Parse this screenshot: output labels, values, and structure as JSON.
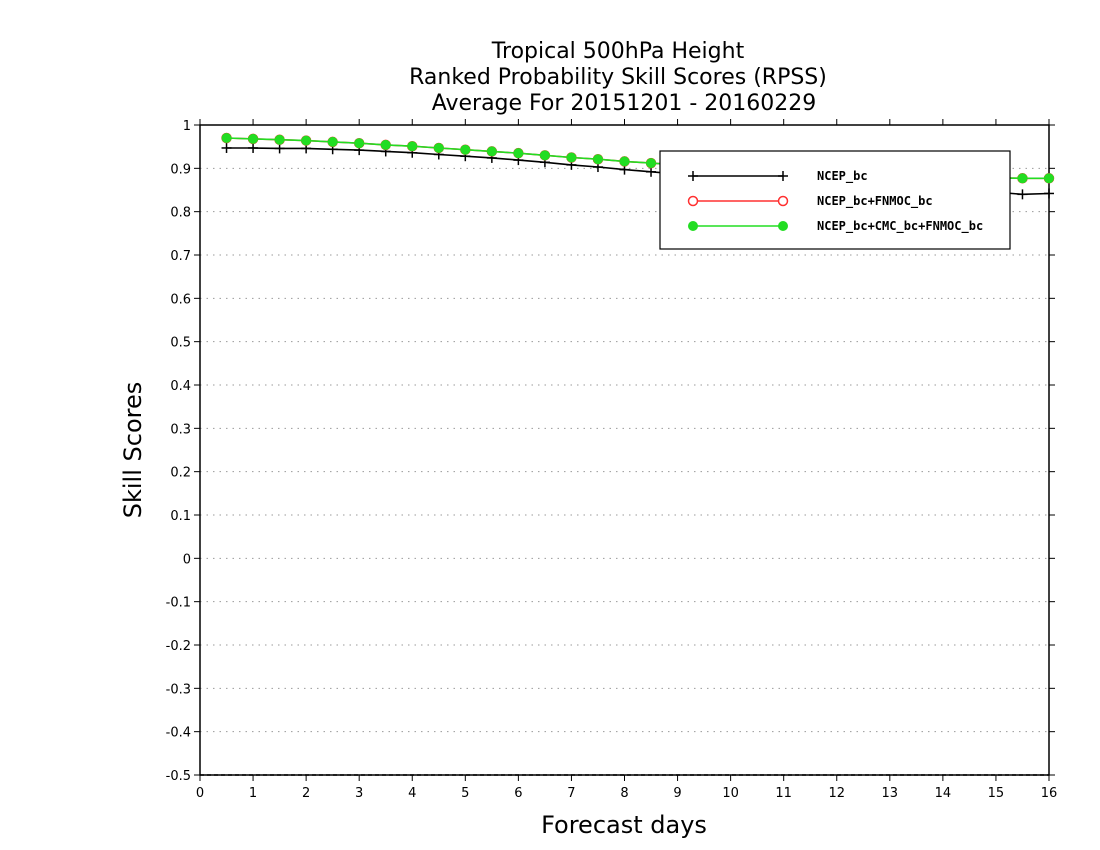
{
  "chart_data": {
    "type": "line",
    "title": [
      "Tropical 500hPa Height",
      "Ranked Probability Skill Scores (RPSS)",
      "Average For 20151201 - 20160229"
    ],
    "xlabel": "Forecast days",
    "ylabel": "Skill Scores",
    "xlim": [
      0,
      16
    ],
    "ylim": [
      -0.5,
      1
    ],
    "xticks": [
      "0",
      "1",
      "2",
      "3",
      "4",
      "5",
      "6",
      "7",
      "8",
      "9",
      "10",
      "11",
      "12",
      "13",
      "14",
      "15",
      "16"
    ],
    "yticks": [
      "1",
      "0.9",
      "0.8",
      "0.7",
      "0.6",
      "0.5",
      "0.4",
      "0.3",
      "0.2",
      "0.1",
      "0",
      "-0.1",
      "-0.2",
      "-0.3",
      "-0.4",
      "-0.5"
    ],
    "ytick_values": [
      1,
      0.9,
      0.8,
      0.7,
      0.6,
      0.5,
      0.4,
      0.3,
      0.2,
      0.1,
      0,
      -0.1,
      -0.2,
      -0.3,
      -0.4,
      -0.5
    ],
    "grid": "horizontal-dotted",
    "legend_position": "top-right",
    "x": [
      0.5,
      1,
      1.5,
      2,
      2.5,
      3,
      3.5,
      4,
      4.5,
      5,
      5.5,
      6,
      6.5,
      7,
      7.5,
      8,
      8.5,
      9,
      9.5,
      10,
      10.5,
      11,
      11.5,
      12,
      12.5,
      13,
      13.5,
      14,
      14.5,
      15,
      15.5,
      16
    ],
    "series": [
      {
        "name": "NCEP_bc",
        "color": "#000000",
        "marker": "plus",
        "values": [
          0.947,
          0.947,
          0.946,
          0.946,
          0.944,
          0.942,
          0.939,
          0.936,
          0.932,
          0.928,
          0.924,
          0.919,
          0.914,
          0.908,
          0.903,
          0.897,
          0.892,
          0.887,
          0.882,
          0.877,
          0.873,
          0.869,
          0.865,
          0.862,
          0.859,
          0.856,
          0.853,
          0.851,
          0.848,
          0.845,
          0.84,
          0.842
        ]
      },
      {
        "name": "NCEP_bc+FNMOC_bc",
        "color": "#ff3030",
        "marker": "open-circle",
        "values": [
          0.97,
          0.968,
          0.966,
          0.964,
          0.961,
          0.958,
          0.954,
          0.951,
          0.947,
          0.943,
          0.939,
          0.935,
          0.93,
          0.925,
          0.921,
          0.916,
          0.912,
          0.908,
          0.904,
          0.9,
          0.897,
          0.894,
          0.891,
          0.888,
          0.886,
          0.884,
          0.882,
          0.881,
          0.879,
          0.878,
          0.877,
          0.877
        ]
      },
      {
        "name": "NCEP_bc+CMC_bc+FNMOC_bc",
        "color": "#22dd22",
        "marker": "filled-circle",
        "values": [
          0.97,
          0.968,
          0.966,
          0.964,
          0.961,
          0.958,
          0.954,
          0.951,
          0.947,
          0.943,
          0.939,
          0.935,
          0.93,
          0.925,
          0.921,
          0.916,
          0.912,
          0.908,
          0.904,
          0.9,
          0.897,
          0.894,
          0.891,
          0.888,
          0.886,
          0.884,
          0.882,
          0.881,
          0.879,
          0.878,
          0.877,
          0.877
        ]
      }
    ]
  }
}
